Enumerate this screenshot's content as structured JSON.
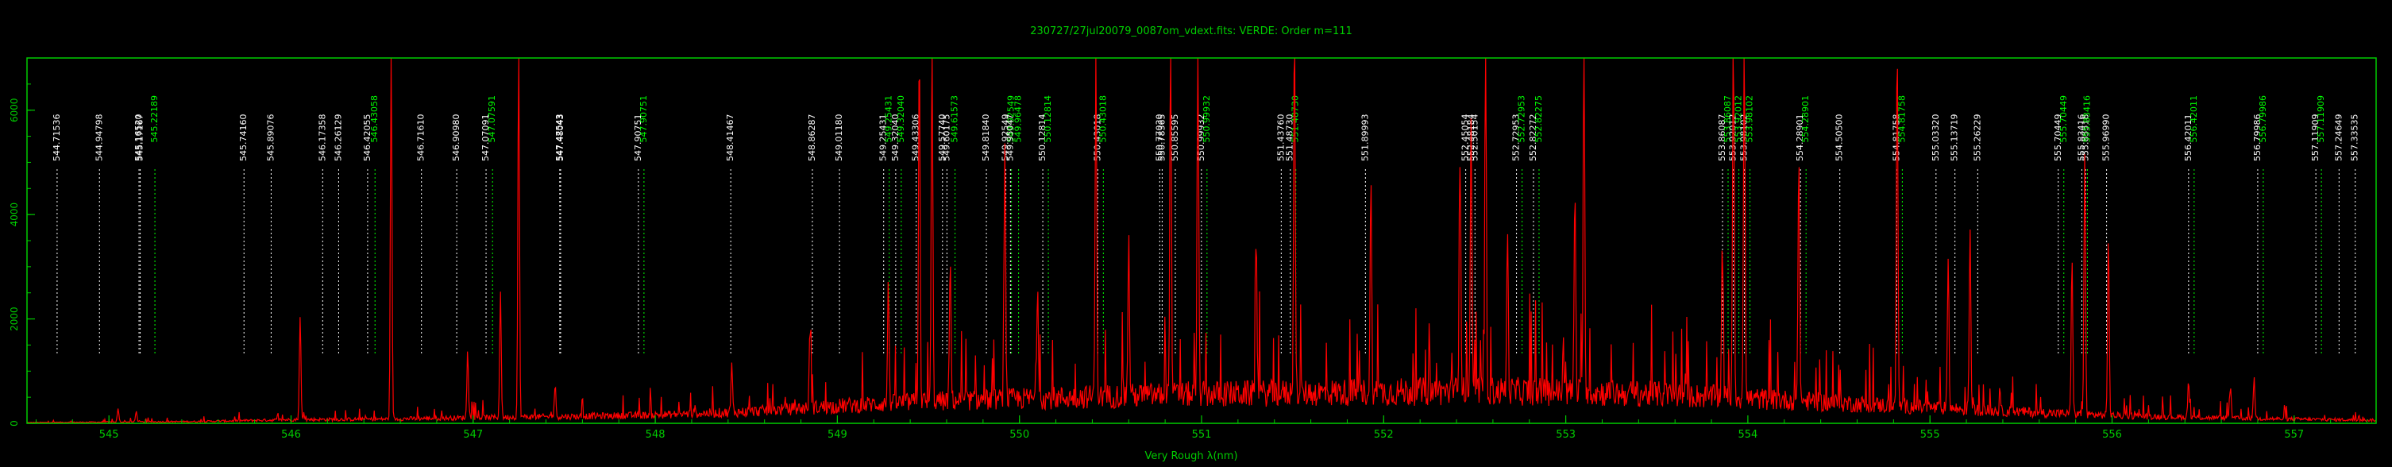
{
  "chart_data": {
    "type": "line",
    "title": "230727/27jul20079_0087om_vdext.fits: VERDE: Order m=111",
    "xlabel": "Very Rough λ(nm)",
    "ylabel": "",
    "xlim": [
      544.55,
      557.45
    ],
    "ylim": [
      0,
      7000
    ],
    "xticks": [
      545,
      546,
      547,
      548,
      549,
      550,
      551,
      552,
      553,
      554,
      555,
      556,
      557
    ],
    "yticks": [
      0,
      2000,
      4000,
      6000
    ],
    "grid": false,
    "colors": {
      "frame": "#00cc00",
      "title": "#00cc00",
      "spectrum": "#ff0000",
      "line_white": "#ffffff",
      "line_green": "#00ff00"
    },
    "continuum": [
      [
        544.55,
        15
      ],
      [
        545.5,
        35
      ],
      [
        546.0,
        70
      ],
      [
        546.5,
        80
      ],
      [
        547.0,
        110
      ],
      [
        547.5,
        130
      ],
      [
        548.0,
        160
      ],
      [
        548.5,
        220
      ],
      [
        549.0,
        330
      ],
      [
        549.5,
        420
      ],
      [
        550.0,
        470
      ],
      [
        550.5,
        520
      ],
      [
        551.0,
        560
      ],
      [
        551.5,
        580
      ],
      [
        552.0,
        600
      ],
      [
        552.5,
        620
      ],
      [
        553.0,
        600
      ],
      [
        553.5,
        560
      ],
      [
        554.0,
        480
      ],
      [
        554.5,
        390
      ],
      [
        555.0,
        300
      ],
      [
        555.5,
        220
      ],
      [
        556.0,
        150
      ],
      [
        556.5,
        110
      ],
      [
        557.0,
        80
      ],
      [
        557.45,
        60
      ]
    ],
    "peaks": [
      [
        545.05,
        250
      ],
      [
        545.15,
        200
      ],
      [
        546.05,
        2000
      ],
      [
        546.55,
        7000
      ],
      [
        546.97,
        1250
      ],
      [
        547.15,
        2400
      ],
      [
        547.25,
        7000
      ],
      [
        547.45,
        600
      ],
      [
        548.42,
        900
      ],
      [
        548.85,
        1600
      ],
      [
        549.28,
        2300
      ],
      [
        549.45,
        7000
      ],
      [
        549.52,
        7000
      ],
      [
        549.62,
        2700
      ],
      [
        549.92,
        4800
      ],
      [
        550.1,
        2200
      ],
      [
        550.42,
        7000
      ],
      [
        550.6,
        3000
      ],
      [
        550.83,
        7000
      ],
      [
        550.98,
        7000
      ],
      [
        551.3,
        3200
      ],
      [
        551.51,
        7000
      ],
      [
        551.93,
        4000
      ],
      [
        552.42,
        4600
      ],
      [
        552.48,
        5000
      ],
      [
        552.56,
        7000
      ],
      [
        552.68,
        3000
      ],
      [
        553.05,
        3800
      ],
      [
        553.1,
        7000
      ],
      [
        553.86,
        3000
      ],
      [
        553.92,
        7000
      ],
      [
        553.98,
        7000
      ],
      [
        554.28,
        4900
      ],
      [
        554.82,
        7000
      ],
      [
        555.1,
        3000
      ],
      [
        555.22,
        3500
      ],
      [
        555.78,
        3000
      ],
      [
        555.85,
        5000
      ],
      [
        555.98,
        3500
      ],
      [
        556.42,
        700
      ],
      [
        556.65,
        600
      ],
      [
        556.78,
        800
      ]
    ],
    "line_ids": [
      {
        "wavelength": 544.71536,
        "label": "544.71536",
        "color": "white"
      },
      {
        "wavelength": 544.94798,
        "label": "544.94798",
        "color": "white"
      },
      {
        "wavelength": 545.1652,
        "label": "545.16520",
        "color": "white"
      },
      {
        "wavelength": 545.17167,
        "label": "545.17167",
        "color": "white"
      },
      {
        "wavelength": 545.22189,
        "label": "545.22189",
        "color": "green"
      },
      {
        "wavelength": 545.7416,
        "label": "545.74160",
        "color": "white"
      },
      {
        "wavelength": 545.89076,
        "label": "545.89076",
        "color": "white"
      },
      {
        "wavelength": 546.17358,
        "label": "546.17358",
        "color": "white"
      },
      {
        "wavelength": 546.26129,
        "label": "546.26129",
        "color": "white"
      },
      {
        "wavelength": 546.42055,
        "label": "546.42055",
        "color": "white"
      },
      {
        "wavelength": 546.43058,
        "label": "546.43058",
        "color": "green"
      },
      {
        "wavelength": 546.7161,
        "label": "546.71610",
        "color": "white"
      },
      {
        "wavelength": 546.9098,
        "label": "546.90980",
        "color": "white"
      },
      {
        "wavelength": 547.07091,
        "label": "547.07091",
        "color": "white"
      },
      {
        "wavelength": 547.07591,
        "label": "547.07591",
        "color": "green"
      },
      {
        "wavelength": 547.47543,
        "label": "547.47543",
        "color": "white"
      },
      {
        "wavelength": 547.48043,
        "label": "547.48043",
        "color": "white"
      },
      {
        "wavelength": 547.90751,
        "label": "547.90751",
        "color": "white"
      },
      {
        "wavelength": 547.90751,
        "label": "547.90751",
        "color": "green"
      },
      {
        "wavelength": 548.41467,
        "label": "548.41467",
        "color": "white"
      },
      {
        "wavelength": 548.86287,
        "label": "548.86287",
        "color": "white"
      },
      {
        "wavelength": 549.0118,
        "label": "549.01180",
        "color": "white"
      },
      {
        "wavelength": 549.25431,
        "label": "549.25431",
        "color": "white"
      },
      {
        "wavelength": 549.25431,
        "label": "549.25431",
        "color": "green"
      },
      {
        "wavelength": 549.3204,
        "label": "549.32040",
        "color": "white"
      },
      {
        "wavelength": 549.3204,
        "label": "549.32040",
        "color": "green"
      },
      {
        "wavelength": 549.43306,
        "label": "549.43306",
        "color": "white"
      },
      {
        "wavelength": 549.5774,
        "label": "549.57740",
        "color": "white"
      },
      {
        "wavelength": 549.60175,
        "label": "549.60175",
        "color": "white"
      },
      {
        "wavelength": 549.61573,
        "label": "549.61573",
        "color": "green"
      },
      {
        "wavelength": 549.8184,
        "label": "549.81840",
        "color": "white"
      },
      {
        "wavelength": 549.92549,
        "label": "549.92549",
        "color": "white"
      },
      {
        "wavelength": 549.92549,
        "label": "549.92549",
        "color": "green"
      },
      {
        "wavelength": 549.95047,
        "label": "549.95047",
        "color": "white"
      },
      {
        "wavelength": 549.96478,
        "label": "549.96478",
        "color": "green"
      },
      {
        "wavelength": 550.12814,
        "label": "550.12814",
        "color": "white"
      },
      {
        "wavelength": 550.12814,
        "label": "550.12814",
        "color": "green"
      },
      {
        "wavelength": 550.43018,
        "label": "550.43018",
        "color": "white"
      },
      {
        "wavelength": 550.43018,
        "label": "550.43018",
        "color": "green"
      },
      {
        "wavelength": 550.7703,
        "label": "550.77030",
        "color": "white"
      },
      {
        "wavelength": 550.78365,
        "label": "550.78365",
        "color": "white"
      },
      {
        "wavelength": 550.85595,
        "label": "550.85595",
        "color": "white"
      },
      {
        "wavelength": 550.99932,
        "label": "550.99932",
        "color": "white"
      },
      {
        "wavelength": 550.99932,
        "label": "550.99932",
        "color": "green"
      },
      {
        "wavelength": 551.4376,
        "label": "551.43760",
        "color": "white"
      },
      {
        "wavelength": 551.4873,
        "label": "551.48730",
        "color": "white"
      },
      {
        "wavelength": 551.4873,
        "label": "551.48730",
        "color": "green"
      },
      {
        "wavelength": 551.89993,
        "label": "551.89993",
        "color": "white"
      },
      {
        "wavelength": 552.45054,
        "label": "552.45054",
        "color": "white"
      },
      {
        "wavelength": 552.48184,
        "label": "552.48184",
        "color": "white"
      },
      {
        "wavelength": 552.50154,
        "label": "552.50154",
        "color": "white"
      },
      {
        "wavelength": 552.72953,
        "label": "552.72953",
        "color": "white"
      },
      {
        "wavelength": 552.72953,
        "label": "552.72953",
        "color": "green"
      },
      {
        "wavelength": 552.82272,
        "label": "552.82272",
        "color": "white"
      },
      {
        "wavelength": 552.82275,
        "label": "552.82275",
        "color": "green"
      },
      {
        "wavelength": 553.86087,
        "label": "553.86087",
        "color": "white"
      },
      {
        "wavelength": 553.86087,
        "label": "553.86087",
        "color": "green"
      },
      {
        "wavelength": 553.92012,
        "label": "553.92012",
        "color": "white"
      },
      {
        "wavelength": 553.92012,
        "label": "553.92012",
        "color": "green"
      },
      {
        "wavelength": 553.98102,
        "label": "553.98102",
        "color": "white"
      },
      {
        "wavelength": 553.98102,
        "label": "553.98102",
        "color": "green"
      },
      {
        "wavelength": 554.28901,
        "label": "554.28901",
        "color": "white"
      },
      {
        "wavelength": 554.28901,
        "label": "554.28901",
        "color": "green"
      },
      {
        "wavelength": 554.505,
        "label": "554.50500",
        "color": "white"
      },
      {
        "wavelength": 554.81758,
        "label": "554.81758",
        "color": "white"
      },
      {
        "wavelength": 554.81758,
        "label": "554.81758",
        "color": "green"
      },
      {
        "wavelength": 555.0332,
        "label": "555.03320",
        "color": "white"
      },
      {
        "wavelength": 555.13719,
        "label": "555.13719",
        "color": "white"
      },
      {
        "wavelength": 555.26229,
        "label": "555.26229",
        "color": "white"
      },
      {
        "wavelength": 555.70449,
        "label": "555.70449",
        "color": "white"
      },
      {
        "wavelength": 555.70449,
        "label": "555.70449",
        "color": "green"
      },
      {
        "wavelength": 555.83416,
        "label": "555.83416",
        "color": "white"
      },
      {
        "wavelength": 555.85518,
        "label": "555.85518",
        "color": "white"
      },
      {
        "wavelength": 555.83416,
        "label": "555.83416",
        "color": "green"
      },
      {
        "wavelength": 555.9699,
        "label": "555.96990",
        "color": "white"
      },
      {
        "wavelength": 556.42011,
        "label": "556.42011",
        "color": "white"
      },
      {
        "wavelength": 556.42011,
        "label": "556.42011",
        "color": "green"
      },
      {
        "wavelength": 556.79986,
        "label": "556.79986",
        "color": "white"
      },
      {
        "wavelength": 556.79986,
        "label": "556.79986",
        "color": "green"
      },
      {
        "wavelength": 557.11909,
        "label": "557.11909",
        "color": "white"
      },
      {
        "wavelength": 557.11909,
        "label": "557.11909",
        "color": "green"
      },
      {
        "wavelength": 557.24649,
        "label": "557.24649",
        "color": "white"
      },
      {
        "wavelength": 557.33535,
        "label": "557.33535",
        "color": "white"
      }
    ]
  }
}
